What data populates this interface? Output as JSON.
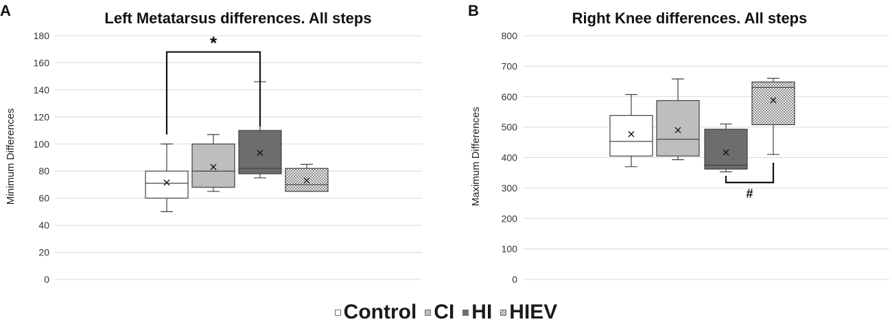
{
  "chart_data": [
    {
      "type": "box",
      "panel_label": "A",
      "title": "Left Metatarsus differences. All steps",
      "ylabel": "Minimum Differences",
      "ylim": [
        0,
        180
      ],
      "yticks": [
        0,
        20,
        40,
        60,
        80,
        100,
        120,
        140,
        160,
        180
      ],
      "grid": true,
      "series": [
        {
          "name": "Control",
          "min": 50,
          "q1": 60,
          "median": 71,
          "q3": 80,
          "max": 100,
          "mean": 71.5
        },
        {
          "name": "CI",
          "min": 65,
          "q1": 68,
          "median": 80,
          "q3": 100,
          "max": 107,
          "mean": 83
        },
        {
          "name": "HI",
          "min": 75,
          "q1": 78,
          "median": 82,
          "q3": 110,
          "max": 146,
          "mean": 93.5
        },
        {
          "name": "HIEV",
          "min": 65,
          "q1": 65,
          "median": 70,
          "q3": 82,
          "max": 85,
          "mean": 73
        }
      ],
      "annotations": [
        {
          "text": "*",
          "from": "Control",
          "to": "HI",
          "y_from": 107,
          "y_to": 113,
          "y_bar": 168,
          "position": "above"
        }
      ]
    },
    {
      "type": "box",
      "panel_label": "B",
      "title": "Right Knee differences. All steps",
      "ylabel": "Maximum Differences",
      "ylim": [
        0,
        800
      ],
      "yticks": [
        0,
        100,
        200,
        300,
        400,
        500,
        600,
        700,
        800
      ],
      "grid": true,
      "series": [
        {
          "name": "Control",
          "min": 370,
          "q1": 405,
          "median": 453,
          "q3": 538,
          "max": 607,
          "mean": 477
        },
        {
          "name": "CI",
          "min": 393,
          "q1": 405,
          "median": 460,
          "q3": 587,
          "max": 658,
          "mean": 490
        },
        {
          "name": "HI",
          "min": 353,
          "q1": 362,
          "median": 375,
          "q3": 493,
          "max": 510,
          "mean": 417
        },
        {
          "name": "HIEV",
          "min": 410,
          "q1": 508,
          "median": 630,
          "q3": 648,
          "max": 660,
          "mean": 588
        }
      ],
      "annotations": [
        {
          "text": "#",
          "from": "HI",
          "to": "HIEV",
          "y_from": 340,
          "y_to": 383,
          "y_bar": 318,
          "position": "below"
        }
      ]
    }
  ],
  "legend": {
    "placement": "bottom-center",
    "items": [
      {
        "label": "Control",
        "color": "#ffffff",
        "pattern": "none"
      },
      {
        "label": "CI",
        "color": "#bebebe",
        "pattern": "none"
      },
      {
        "label": "HI",
        "color": "#6d6d6d",
        "pattern": "none"
      },
      {
        "label": "HIEV",
        "color": "#e6e6e6",
        "pattern": "checker"
      }
    ]
  }
}
